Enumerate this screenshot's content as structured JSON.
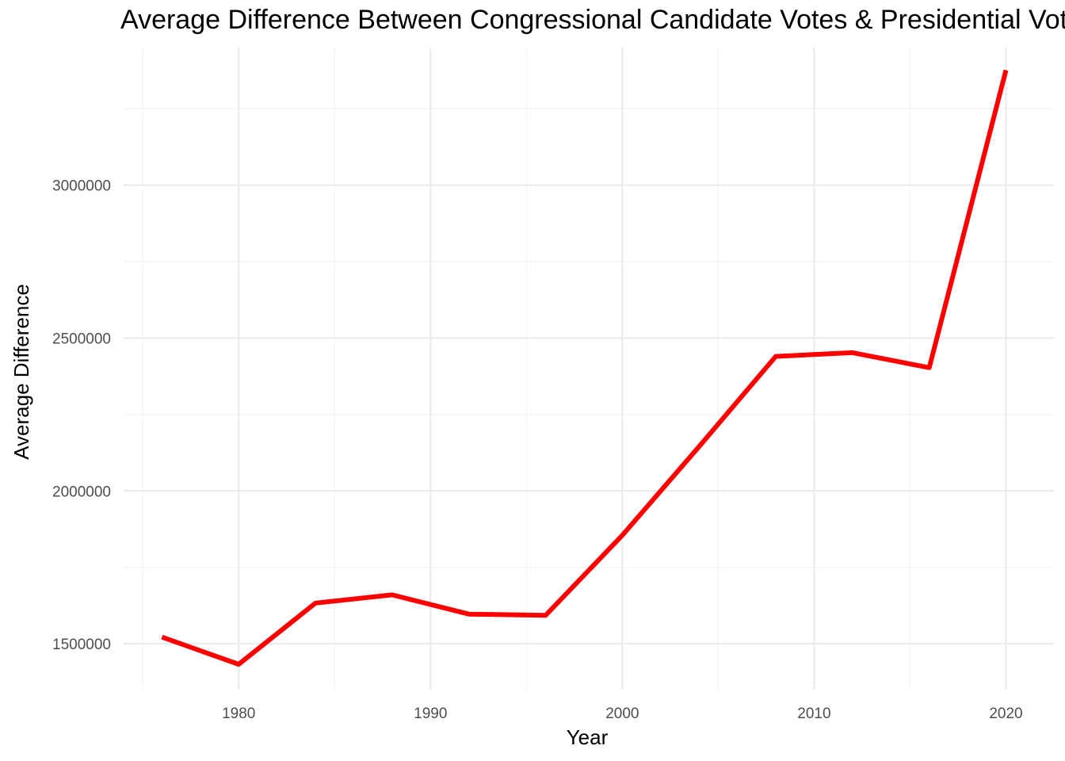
{
  "chart_data": {
    "type": "line",
    "title": "Average Difference Between Congressional Candidate Votes & Presidential Votes",
    "xlabel": "Year",
    "ylabel": "Average Difference",
    "xlim": [
      1974,
      2022.5
    ],
    "ylim": [
      1350000,
      3450000
    ],
    "x_ticks": [
      1980,
      1990,
      2000,
      2010,
      2020
    ],
    "x_tick_labels": [
      "1980",
      "1990",
      "2000",
      "2010",
      "2020"
    ],
    "y_ticks": [
      1500000,
      2000000,
      2500000,
      3000000
    ],
    "y_tick_labels": [
      "1500000",
      "2000000",
      "2500000",
      "3000000"
    ],
    "grid": true,
    "legend": "none",
    "series": [
      {
        "color": "#ff0000",
        "x": [
          1976,
          1980,
          1984,
          1988,
          1992,
          1996,
          2000,
          2004,
          2008,
          2012,
          2016,
          2020
        ],
        "values": [
          1522000,
          1433000,
          1633000,
          1660000,
          1597000,
          1593000,
          1855000,
          2145000,
          2440000,
          2452000,
          2403000,
          3376000
        ]
      }
    ]
  },
  "colors": {
    "background": "#ffffff",
    "grid_major": "#ebebeb",
    "grid_minor": "#f2f2f2",
    "line": "#ff0000"
  }
}
